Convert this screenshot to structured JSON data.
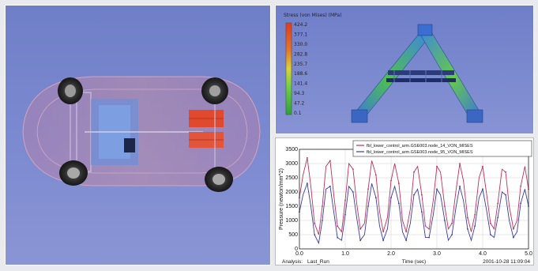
{
  "contour": {
    "title": "Stress (von Mises) (MPa)",
    "legend_values": [
      "424.2",
      "377.1",
      "330.0",
      "282.8",
      "235.7",
      "188.6",
      "141.4",
      "94.3",
      "47.2",
      "0.1"
    ]
  },
  "plot": {
    "footer": {
      "analysis_label": "Analysis:",
      "analysis_value": "Last_Run",
      "date": "2001-10-28 11:09:04"
    },
    "legend_entries": [
      "fbl_lower_control_arm.GSE003.node_14_VON_MISES",
      "fbl_lower_control_arm.GSE003.node_95_VON_MISES"
    ]
  },
  "chart_data": {
    "type": "line",
    "xlabel": "Time (sec)",
    "ylabel": "Pressure (newton/mm^2)",
    "xlim": [
      0,
      5.0
    ],
    "ylim": [
      0,
      3500
    ],
    "xticks": [
      "0.0",
      "1.0",
      "2.0",
      "3.0",
      "4.0",
      "5.0"
    ],
    "yticks": [
      "0",
      "500",
      "1000",
      "1500",
      "2000",
      "2500",
      "3000",
      "3500"
    ],
    "series": [
      {
        "name": "fbl_lower_control_arm.GSE003.node_14_VON_MISES",
        "color": "#c0305a",
        "x": [
          0.0,
          0.08,
          0.17,
          0.25,
          0.33,
          0.42,
          0.5,
          0.58,
          0.67,
          0.75,
          0.83,
          0.92,
          1.0,
          1.08,
          1.17,
          1.25,
          1.33,
          1.42,
          1.5,
          1.58,
          1.67,
          1.75,
          1.83,
          1.92,
          2.0,
          2.08,
          2.17,
          2.25,
          2.33,
          2.42,
          2.5,
          2.58,
          2.67,
          2.75,
          2.83,
          2.92,
          3.0,
          3.08,
          3.17,
          3.25,
          3.33,
          3.42,
          3.5,
          3.58,
          3.67,
          3.75,
          3.83,
          3.92,
          4.0,
          4.08,
          4.17,
          4.25,
          4.33,
          4.42,
          4.5,
          4.58,
          4.67,
          4.75,
          4.83,
          4.92,
          5.0
        ],
        "y": [
          1800,
          2600,
          3200,
          2200,
          900,
          500,
          1500,
          2900,
          3100,
          1900,
          800,
          600,
          1700,
          3000,
          2800,
          1600,
          700,
          900,
          2100,
          3100,
          2600,
          1300,
          600,
          1100,
          2400,
          3000,
          2300,
          1000,
          600,
          1400,
          2700,
          2900,
          1900,
          800,
          700,
          1700,
          2900,
          2700,
          1500,
          700,
          900,
          2100,
          3000,
          2400,
          1100,
          600,
          1200,
          2500,
          2900,
          2000,
          900,
          700,
          1600,
          2800,
          2700,
          1500,
          700,
          1000,
          2200,
          2900,
          2100
        ]
      },
      {
        "name": "fbl_lower_control_arm.GSE003.node_95_VON_MISES",
        "color": "#3a3aa8",
        "x": [
          0.0,
          0.08,
          0.17,
          0.25,
          0.33,
          0.42,
          0.5,
          0.58,
          0.67,
          0.75,
          0.83,
          0.92,
          1.0,
          1.08,
          1.17,
          1.25,
          1.33,
          1.42,
          1.5,
          1.58,
          1.67,
          1.75,
          1.83,
          1.92,
          2.0,
          2.08,
          2.17,
          2.25,
          2.33,
          2.42,
          2.5,
          2.58,
          2.67,
          2.75,
          2.83,
          2.92,
          3.0,
          3.08,
          3.17,
          3.25,
          3.33,
          3.42,
          3.5,
          3.58,
          3.67,
          3.75,
          3.83,
          3.92,
          4.0,
          4.08,
          4.17,
          4.25,
          4.33,
          4.42,
          4.5,
          4.58,
          4.67,
          4.75,
          4.83,
          4.92,
          5.0
        ],
        "y": [
          1300,
          1900,
          2300,
          1500,
          500,
          200,
          1000,
          2100,
          2200,
          1300,
          400,
          300,
          1200,
          2200,
          2000,
          1100,
          300,
          500,
          1500,
          2300,
          1800,
          800,
          300,
          700,
          1800,
          2200,
          1600,
          600,
          300,
          900,
          1900,
          2100,
          1300,
          400,
          400,
          1200,
          2100,
          1900,
          1000,
          300,
          500,
          1500,
          2200,
          1700,
          700,
          300,
          800,
          1800,
          2100,
          1400,
          500,
          400,
          1100,
          2000,
          1900,
          1000,
          400,
          600,
          1600,
          2100,
          1500
        ]
      }
    ]
  }
}
